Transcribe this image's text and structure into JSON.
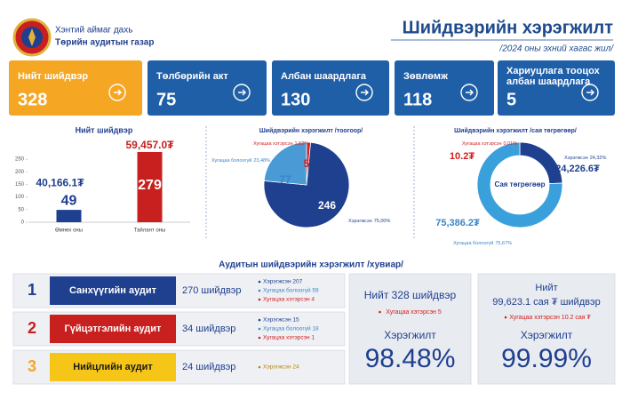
{
  "header": {
    "org_line1": "Хэнтий аймаг дахь",
    "org_line2": "Төрийн аудитын газар",
    "title": "Шийдвэрийн хэрэгжилт",
    "subtitle": "/2024 оны эхний хагас жил/"
  },
  "cards": [
    {
      "label_lines": [
        "Нийт шийдвэр"
      ],
      "value": "328"
    },
    {
      "label_lines": [
        "Төлбөрийн акт"
      ],
      "value": "75"
    },
    {
      "label_lines": [
        "Албан шаардлага"
      ],
      "value": "130"
    },
    {
      "label_lines": [
        "Зөвлөмж"
      ],
      "value": "118"
    },
    {
      "label_lines": [
        "Хариуцлага тооцох",
        "албан шаардлага"
      ],
      "value": "5"
    }
  ],
  "chart_data": [
    {
      "type": "bar",
      "title": "Нийт шийдвэр",
      "categories": [
        "Өмнөх оны",
        "Тайлант оны"
      ],
      "values": [
        49,
        279
      ],
      "amount_labels": [
        "40,166.1₮",
        "59,457.0₮"
      ],
      "colors": [
        "#1f3f8f",
        "#c8201e"
      ],
      "ylim": [
        0,
        300
      ],
      "yticks": [
        0,
        50,
        100,
        150,
        200,
        250
      ]
    },
    {
      "type": "pie",
      "title": "Шийдвэрийн хэрэгжилт /тоогоор/",
      "categories": [
        "Хугацаа хэтэрсэн",
        "Хэрэгжсэн",
        "Хугацаа болоогүй"
      ],
      "values": [
        5,
        246,
        77
      ],
      "percent_labels": [
        "1,52%",
        "75,00%",
        "23,48%"
      ],
      "colors": [
        "#d0201f",
        "#1f3f8f",
        "#4a9ad6"
      ]
    },
    {
      "type": "donut",
      "title": "Шийдвэрийн хэрэгжилт /сая төгрөгөөр/",
      "center_label": "Сая төгрөгөөр",
      "categories": [
        "Хугацаа хэтэрсэн",
        "Хэрэгжсэн",
        "Хугацаа болоогүй"
      ],
      "values": [
        10.2,
        24226.6,
        75386.2
      ],
      "value_labels": [
        "10.2₮",
        "24,226.6₮",
        "75,386.2₮"
      ],
      "percent_labels": [
        "0,01%",
        "24,32%",
        "75,67%"
      ],
      "colors": [
        "#d0201f",
        "#1f3f8f",
        "#3aa0dc"
      ]
    }
  ],
  "audit": {
    "title": "Аудитын шийдвэрийн хэрэгжилт /хувиар/",
    "rows": [
      {
        "number": "1",
        "name": "Санхүүгийн аудит",
        "count": "270 шийдвэр",
        "details": [
          "Хэрэгжсэн 207",
          "Хугацаа болоогүй 59",
          "Хугацаа хэтэрсэн 4"
        ]
      },
      {
        "number": "2",
        "name": "Гүйцэтгэлийн аудит",
        "count": "34 шийдвэр",
        "details": [
          "Хэрэгжсэн 15",
          "Хугацаа болоогүй 18",
          "Хугацаа хэтэрсэн 1"
        ]
      },
      {
        "number": "3",
        "name": "Нийцлийн аудит",
        "count": "24 шийдвэр",
        "details": [
          "Хэрэгжсэн 24"
        ]
      }
    ]
  },
  "summary": [
    {
      "lines": [
        "Нийт 328 шийдвэр"
      ],
      "note": "Хугацаа хэтэрсэн 5",
      "label": "Хэрэгжилт",
      "value": "98.48%"
    },
    {
      "lines": [
        "Нийт",
        "99,623.1 сая ₮ шийдвэр"
      ],
      "note": "Хугацаа хэтэрсэн 10.2 сая ₮",
      "label": "Хэрэгжилт",
      "value": "99.99%"
    }
  ]
}
